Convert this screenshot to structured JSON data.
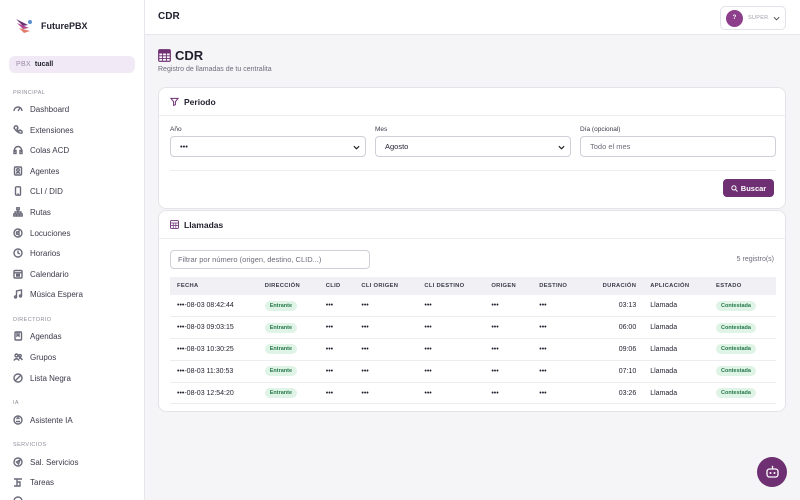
{
  "brand": {
    "name": "FuturePBX"
  },
  "pbx": {
    "label": "PBX",
    "value": "tucall"
  },
  "sidebar": {
    "sections": [
      {
        "title": "PRINCIPAL",
        "items": [
          {
            "label": "Dashboard",
            "icon": "dashboard-icon"
          },
          {
            "label": "Extensiones",
            "icon": "phone-icon"
          },
          {
            "label": "Colas ACD",
            "icon": "headset-icon"
          },
          {
            "label": "Agentes",
            "icon": "agent-icon"
          },
          {
            "label": "CLI / DID",
            "icon": "mobile-icon"
          },
          {
            "label": "Rutas",
            "icon": "routes-icon"
          },
          {
            "label": "Locuciones",
            "icon": "speaker-icon"
          },
          {
            "label": "Horarios",
            "icon": "clock-icon"
          },
          {
            "label": "Calendario",
            "icon": "calendar-icon"
          },
          {
            "label": "Música Espera",
            "icon": "music-icon"
          }
        ]
      },
      {
        "title": "DIRECTORIO",
        "items": [
          {
            "label": "Agendas",
            "icon": "book-icon"
          },
          {
            "label": "Grupos",
            "icon": "group-icon"
          },
          {
            "label": "Lista Negra",
            "icon": "block-icon"
          }
        ]
      },
      {
        "title": "IA",
        "items": [
          {
            "label": "Asistente IA",
            "icon": "assistant-icon"
          }
        ]
      },
      {
        "title": "SERVICIOS",
        "items": [
          {
            "label": "Sal. Servicios",
            "icon": "services-icon"
          },
          {
            "label": "Tareas",
            "icon": "tasks-icon"
          }
        ]
      }
    ]
  },
  "topbar": {
    "title": "CDR",
    "avatar_initial": "?",
    "user_role": "SUPER"
  },
  "page": {
    "title": "CDR",
    "subtitle": "Registro de llamadas de tu centralita"
  },
  "periodo": {
    "title": "Periodo",
    "year_label": "Año",
    "year_value": "•••",
    "month_label": "Mes",
    "month_value": "Agosto",
    "day_label": "Día (opcional)",
    "day_placeholder": "Todo el mes",
    "search_button": "Buscar"
  },
  "llamadas": {
    "title": "Llamadas",
    "filter_placeholder": "Filtrar por número (origen, destino, CLID...)",
    "count_text": "5 registro(s)",
    "columns": [
      "FECHA",
      "DIRECCIÓN",
      "CLID",
      "CLI ORIGEN",
      "CLI DESTINO",
      "ORIGEN",
      "DESTINO",
      "DURACIÓN",
      "APLICACIÓN",
      "ESTADO"
    ],
    "rows": [
      [
        "•••-08-03 08:42:44",
        "Entrante",
        "•••",
        "•••",
        "•••",
        "•••",
        "•••",
        "03:13",
        "Llamada",
        "Contestada"
      ],
      [
        "•••-08-03 09:03:15",
        "Entrante",
        "•••",
        "•••",
        "•••",
        "•••",
        "•••",
        "06:00",
        "Llamada",
        "Contestada"
      ],
      [
        "•••-08-03 10:30:25",
        "Entrante",
        "•••",
        "•••",
        "•••",
        "•••",
        "•••",
        "09:06",
        "Llamada",
        "Contestada"
      ],
      [
        "•••-08-03 11:30:53",
        "Entrante",
        "•••",
        "•••",
        "•••",
        "•••",
        "•••",
        "07:10",
        "Llamada",
        "Contestada"
      ],
      [
        "•••-08-03 12:54:20",
        "Entrante",
        "•••",
        "•••",
        "•••",
        "•••",
        "•••",
        "03:26",
        "Llamada",
        "Contestada"
      ]
    ]
  },
  "colors": {
    "accent": "#6e2f73",
    "avatar": "#8e3f8c",
    "badge_bg": "#dff3e6",
    "badge_text": "#25794a"
  }
}
